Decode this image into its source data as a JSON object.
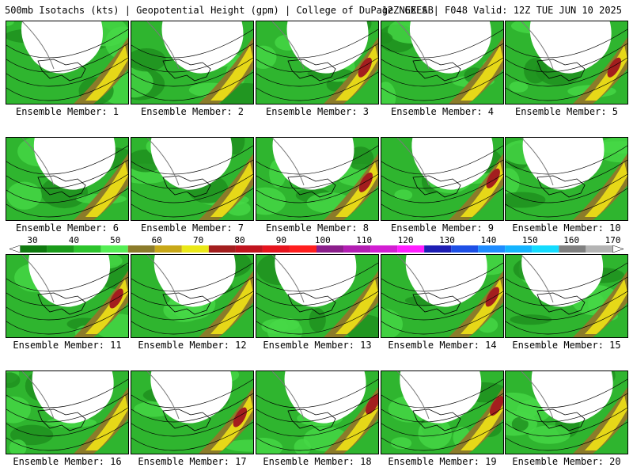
{
  "header": {
    "left": "500mb Isotachs (kts) | Geopotential Height (gpm) | College of DuPage NEXLAB",
    "right": "12Z GEFS | F048 Valid: 12Z TUE JUN 10 2025"
  },
  "colorbar": {
    "ticks": [
      "30",
      "40",
      "50",
      "60",
      "70",
      "80",
      "90",
      "100",
      "110",
      "120",
      "130",
      "140",
      "150",
      "160",
      "170"
    ],
    "colors": [
      "#0f7a0f",
      "#1a9b1a",
      "#2cc42c",
      "#55ee55",
      "#8b7b2a",
      "#c8a818",
      "#eae818",
      "#a31e1e",
      "#c0141e",
      "#e6141e",
      "#ff1e1e",
      "#8b1e8b",
      "#b21eb2",
      "#d21ed2",
      "#ff1eff",
      "#1e1eb4",
      "#1e50e6",
      "#1e8cff",
      "#14b4ff",
      "#14dcff",
      "#808080",
      "#b4b4b4"
    ]
  },
  "members": [
    {
      "label": "Ensemble Member: 1"
    },
    {
      "label": "Ensemble Member: 2"
    },
    {
      "label": "Ensemble Member: 3"
    },
    {
      "label": "Ensemble Member: 4"
    },
    {
      "label": "Ensemble Member: 5"
    },
    {
      "label": "Ensemble Member: 6"
    },
    {
      "label": "Ensemble Member: 7"
    },
    {
      "label": "Ensemble Member: 8"
    },
    {
      "label": "Ensemble Member: 9"
    },
    {
      "label": "Ensemble Member: 10"
    },
    {
      "label": "Ensemble Member: 11"
    },
    {
      "label": "Ensemble Member: 12"
    },
    {
      "label": "Ensemble Member: 13"
    },
    {
      "label": "Ensemble Member: 14"
    },
    {
      "label": "Ensemble Member: 15"
    },
    {
      "label": "Ensemble Member: 16"
    },
    {
      "label": "Ensemble Member: 17"
    },
    {
      "label": "Ensemble Member: 18"
    },
    {
      "label": "Ensemble Member: 19"
    },
    {
      "label": "Ensemble Member: 20"
    }
  ]
}
